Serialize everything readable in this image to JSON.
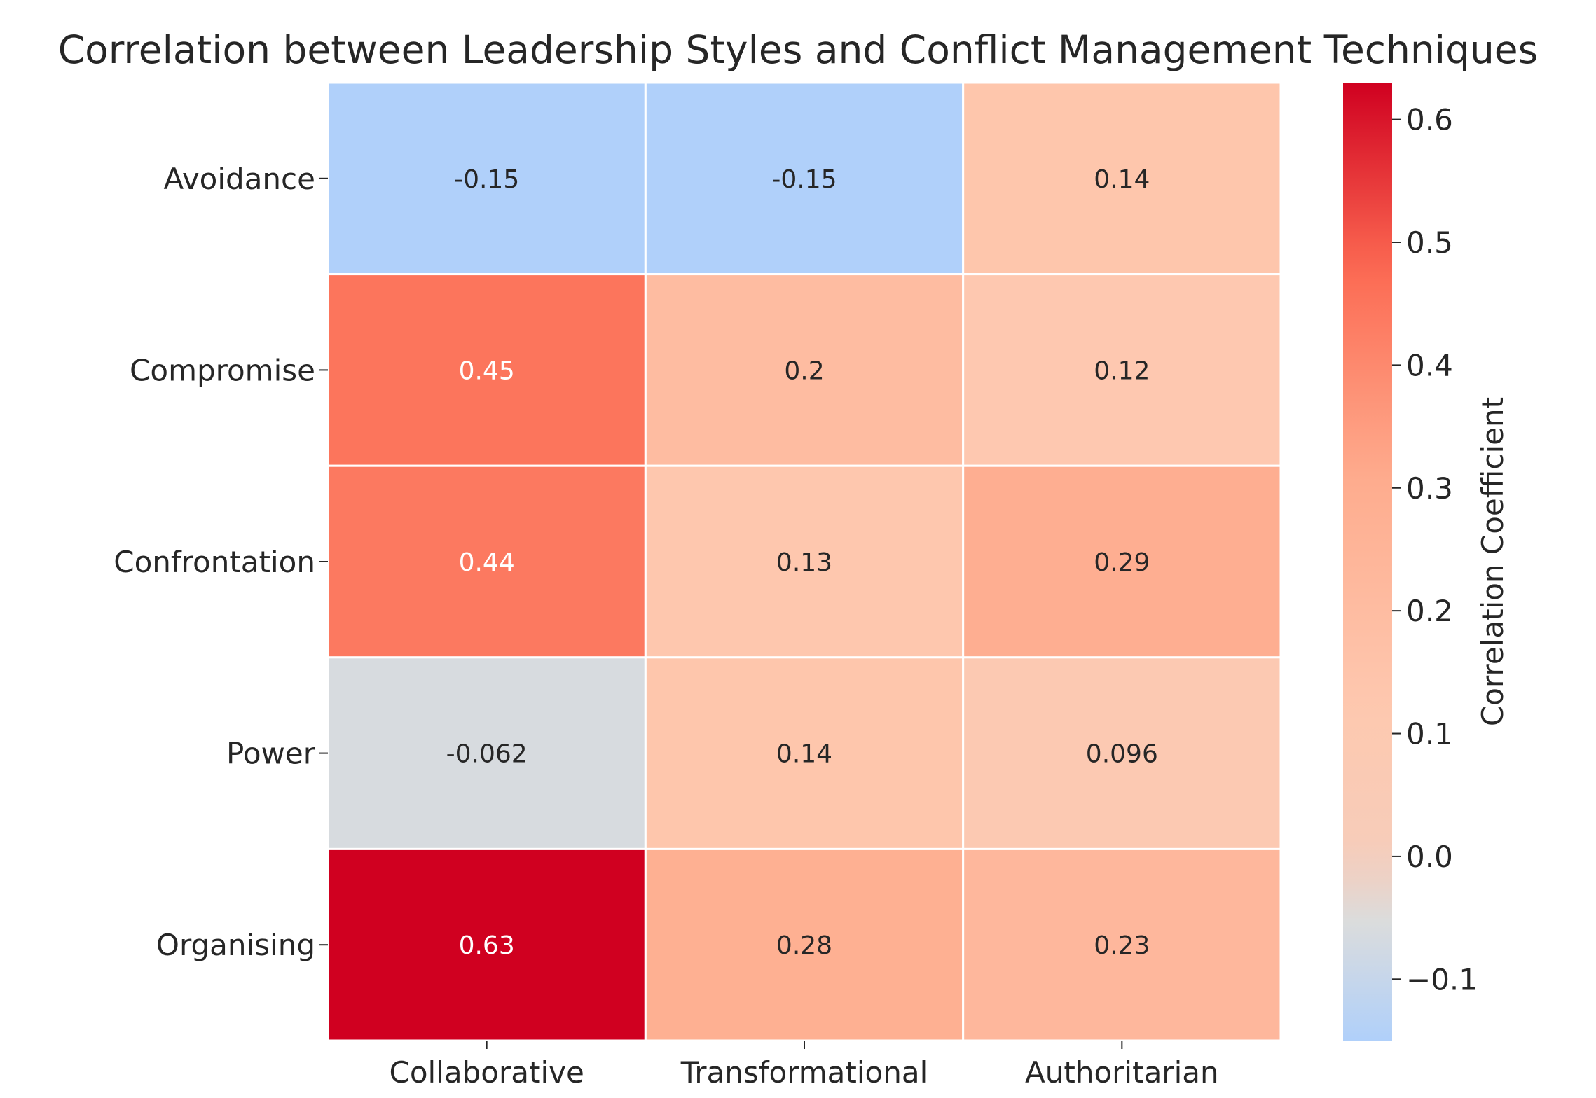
{
  "chart_data": {
    "type": "heatmap",
    "title": "Correlation between Leadership Styles and Conflict Management Techniques",
    "rows": [
      "Avoidance",
      "Compromise",
      "Confrontation",
      "Power",
      "Organising"
    ],
    "columns": [
      "Collaborative",
      "Transformational",
      "Authoritarian"
    ],
    "values": [
      [
        -0.15,
        -0.15,
        0.14
      ],
      [
        0.45,
        0.2,
        0.12
      ],
      [
        0.44,
        0.13,
        0.29
      ],
      [
        -0.062,
        0.14,
        0.096
      ],
      [
        0.63,
        0.28,
        0.23
      ]
    ],
    "value_labels": [
      [
        "-0.15",
        "-0.15",
        "0.14"
      ],
      [
        "0.45",
        "0.2",
        "0.12"
      ],
      [
        "0.44",
        "0.13",
        "0.29"
      ],
      [
        "-0.062",
        "0.14",
        "0.096"
      ],
      [
        "0.63",
        "0.28",
        "0.23"
      ]
    ],
    "colormap": "coolwarm",
    "center": 0,
    "vmin": -0.15,
    "vmax": 0.63,
    "colorbar": {
      "label": "Correlation Coefficient",
      "ticks": [
        0.6,
        0.5,
        0.4,
        0.3,
        0.2,
        0.1,
        0.0,
        -0.1
      ],
      "tick_labels": [
        "0.6",
        "0.5",
        "0.4",
        "0.3",
        "0.2",
        "0.1",
        "0.0",
        "−0.1"
      ]
    }
  }
}
